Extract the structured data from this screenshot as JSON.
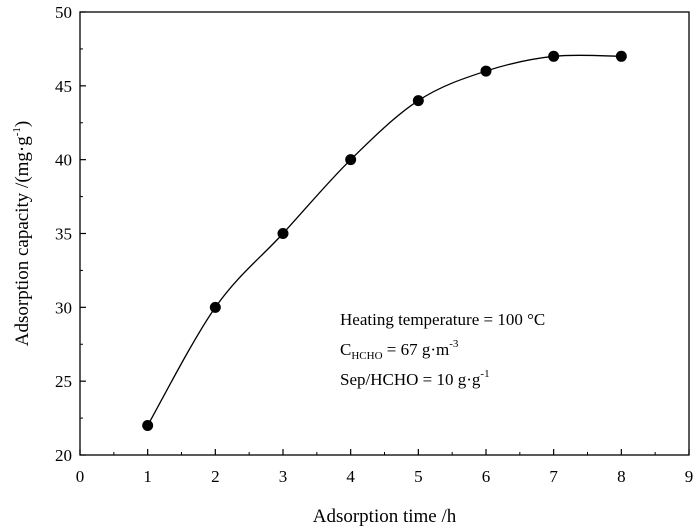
{
  "chart_data": {
    "type": "line",
    "title": "",
    "xlabel": "Adsorption time /h",
    "ylabel": {
      "main": "Adsorption capacity /(mg·g",
      "sup": "-1",
      "close": ")"
    },
    "xlim": [
      0,
      9
    ],
    "ylim": [
      20,
      50
    ],
    "xticks": [
      0,
      1,
      2,
      3,
      4,
      5,
      6,
      7,
      8,
      9
    ],
    "yticks": [
      20,
      25,
      30,
      35,
      40,
      45,
      50
    ],
    "grid": false,
    "series": [
      {
        "x": [
          1,
          2,
          3,
          4,
          5,
          6,
          7,
          8
        ],
        "y": [
          22,
          30,
          35,
          40,
          44,
          46,
          47,
          47
        ],
        "color": "#000000",
        "marker": "circle"
      }
    ],
    "annotations": [
      {
        "main": "Heating temperature = 100 °C"
      },
      {
        "main": "C",
        "sub": "HCHO",
        "rest": " = 67 g·m",
        "sup": "-3"
      },
      {
        "main": "Sep/HCHO = 10 g·g",
        "sup": "-1"
      }
    ]
  }
}
